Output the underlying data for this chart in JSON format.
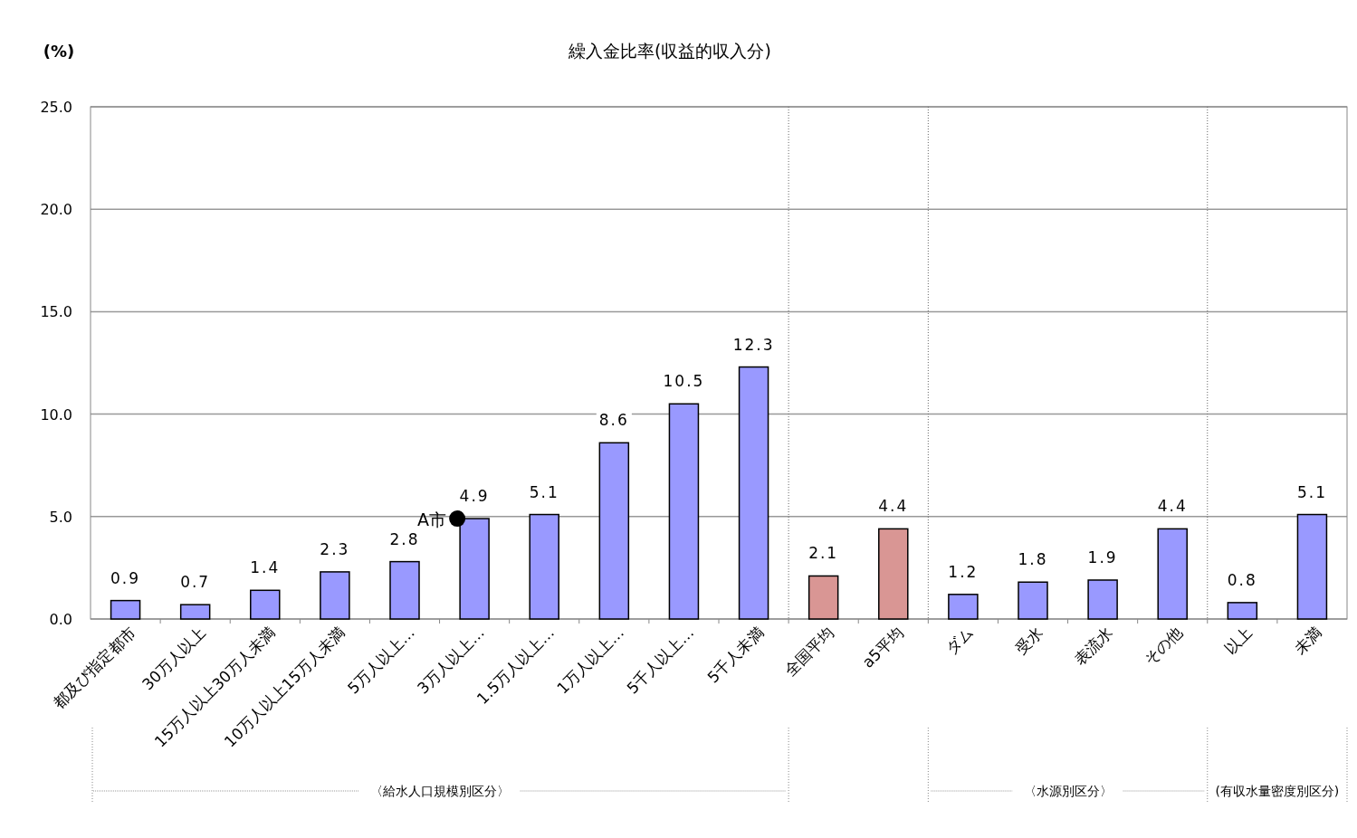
{
  "chart_data": {
    "type": "bar",
    "title": "繰入金比率(収益的収入分)",
    "ylabel": "(%)",
    "categories": [
      "都及び指定都市",
      "30万人以上",
      "15万人以上30万人未満",
      "10万人以上15万人未満",
      "5万人以上…",
      "3万人以上…",
      "1.5万人以上…",
      "1万人以上…",
      "5千人以上…",
      "5千人未満",
      "全国平均",
      "a5平均",
      "ダム",
      "受水",
      "表流水",
      "その他",
      "以上",
      "未満"
    ],
    "series": [
      {
        "values": [
          0.9,
          0.7,
          1.4,
          2.3,
          2.8,
          4.9,
          5.1,
          8.6,
          10.5,
          12.3,
          2.1,
          4.4,
          1.2,
          1.8,
          1.9,
          4.4,
          0.8,
          5.1
        ],
        "colors": [
          "#9999ff",
          "#9999ff",
          "#9999ff",
          "#9999ff",
          "#9999ff",
          "#9999ff",
          "#9999ff",
          "#9999ff",
          "#9999ff",
          "#9999ff",
          "#d99694",
          "#d99694",
          "#9999ff",
          "#9999ff",
          "#9999ff",
          "#9999ff",
          "#9999ff",
          "#9999ff"
        ],
        "value_labels": [
          "0.9",
          "0.7",
          "1.4",
          "2.3",
          "2.8",
          "4.9",
          "5.1",
          "8.6",
          "10.5",
          "12.3",
          "2.1",
          "4.4",
          "1.2",
          "1.8",
          "1.9",
          "4.4",
          "0.8",
          "5.1"
        ]
      },
      {
        "type": "scatter",
        "name": "A市",
        "x": [
          "3万人以上…"
        ],
        "values": [
          4.9
        ],
        "color": "#000000",
        "marker": "circle"
      }
    ],
    "ylim": [
      0,
      25
    ],
    "yticks": [
      {
        "value": 0,
        "label": "0.0"
      },
      {
        "value": 5,
        "label": "5.0"
      },
      {
        "value": 10,
        "label": "10.0"
      },
      {
        "value": 15,
        "label": "15.0"
      },
      {
        "value": 20,
        "label": "20.0"
      },
      {
        "value": 25,
        "label": "25.0"
      }
    ],
    "grid": "y",
    "annotations": [
      "〈給水人口規模別区分〉",
      "〈水源別区分〉",
      "(有収水量密度別区分)"
    ]
  }
}
